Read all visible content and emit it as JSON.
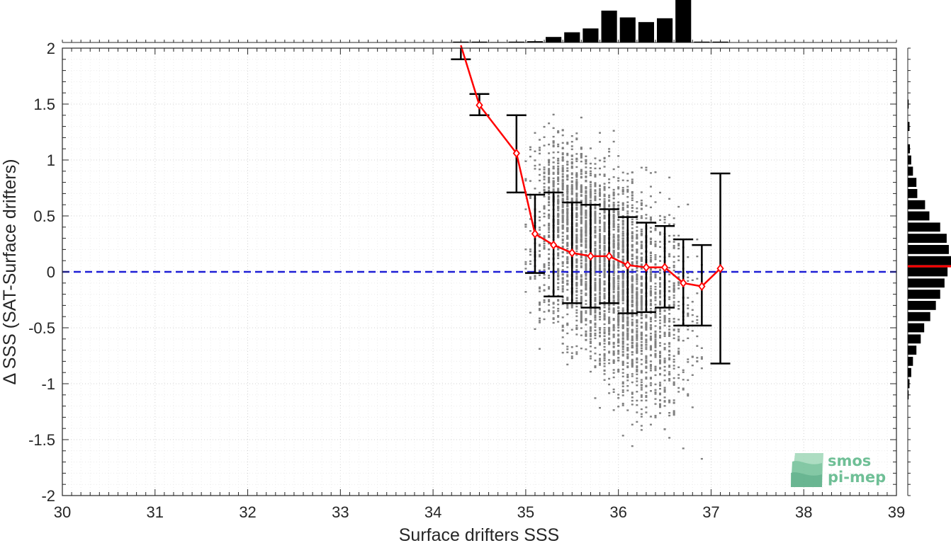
{
  "chart_data": {
    "type": "scatter",
    "xlabel": "Surface drifters SSS",
    "ylabel": "Δ SSS (SAT-Surface drifters)",
    "xlim": [
      30,
      39
    ],
    "ylim": [
      -2,
      2
    ],
    "xticks": [
      "30",
      "31",
      "32",
      "33",
      "34",
      "35",
      "36",
      "37",
      "38",
      "39"
    ],
    "yticks": [
      "2",
      "1.5",
      "1",
      "0.5",
      "0",
      "-0.5",
      "-1",
      "-1.5",
      "-2"
    ],
    "grid": true,
    "reference_line": {
      "y": 0,
      "style": "dashed",
      "color": "#1f1fd6"
    },
    "scatter_color": "#808080",
    "scatter_cloud": [
      {
        "x_range": [
          35.0,
          36.9
        ],
        "center_x": 35.9,
        "center_y": 0.05,
        "spread_x": 0.42,
        "spread_y": 0.42,
        "count": 3200
      },
      {
        "x_range": [
          35.2,
          35.7
        ],
        "center_x": 35.5,
        "center_y": 0.7,
        "spread_x": 0.18,
        "spread_y": 0.25,
        "count": 350
      },
      {
        "x_range": [
          35.6,
          36.8
        ],
        "center_x": 36.2,
        "center_y": -0.9,
        "spread_x": 0.25,
        "spread_y": 0.25,
        "count": 260
      }
    ],
    "binned_mean": {
      "color": "#ff0000",
      "x": [
        34.3,
        34.5,
        34.9,
        35.1,
        35.3,
        35.5,
        35.7,
        35.9,
        36.1,
        36.3,
        36.5,
        36.7,
        36.9,
        37.1
      ],
      "y": [
        2.05,
        1.49,
        1.06,
        0.34,
        0.24,
        0.17,
        0.14,
        0.14,
        0.06,
        0.04,
        0.04,
        -0.1,
        -0.13,
        0.03
      ],
      "err_low": [
        1.9,
        1.4,
        0.71,
        -0.01,
        -0.22,
        -0.28,
        -0.32,
        -0.28,
        -0.37,
        -0.36,
        -0.32,
        -0.48,
        -0.48,
        -0.82
      ],
      "err_high": [
        2.1,
        1.59,
        1.4,
        0.69,
        0.71,
        0.62,
        0.6,
        0.56,
        0.49,
        0.44,
        0.41,
        0.29,
        0.24,
        0.88
      ]
    },
    "top_histogram": {
      "bin_width": 0.2,
      "x": [
        34.3,
        34.5,
        34.7,
        34.9,
        35.1,
        35.3,
        35.5,
        35.7,
        35.9,
        36.1,
        36.3,
        36.5,
        36.7,
        36.9,
        37.1
      ],
      "counts": [
        0.02,
        0.02,
        0.01,
        0.02,
        0.03,
        0.13,
        0.24,
        0.33,
        0.75,
        0.59,
        0.48,
        0.57,
        1.0,
        0.02,
        0.02
      ]
    },
    "right_histogram": {
      "bin_width": 0.1,
      "mean_line_y": 0.05,
      "mean_line_color": "#ff0000",
      "y": [
        1.5,
        1.3,
        1.1,
        1.0,
        0.9,
        0.8,
        0.7,
        0.6,
        0.5,
        0.4,
        0.3,
        0.2,
        0.1,
        0.0,
        -0.1,
        -0.2,
        -0.3,
        -0.4,
        -0.5,
        -0.6,
        -0.7,
        -0.8,
        -0.9,
        -1.0,
        -1.1
      ],
      "counts": [
        0.02,
        0.04,
        0.05,
        0.08,
        0.12,
        0.2,
        0.22,
        0.4,
        0.5,
        0.75,
        0.9,
        0.95,
        1.0,
        0.92,
        0.85,
        0.75,
        0.65,
        0.52,
        0.38,
        0.3,
        0.2,
        0.12,
        0.08,
        0.04,
        0.02
      ]
    }
  },
  "logo": {
    "line1": "smos",
    "line2": "pi-mep",
    "color": "#6fbf96"
  }
}
